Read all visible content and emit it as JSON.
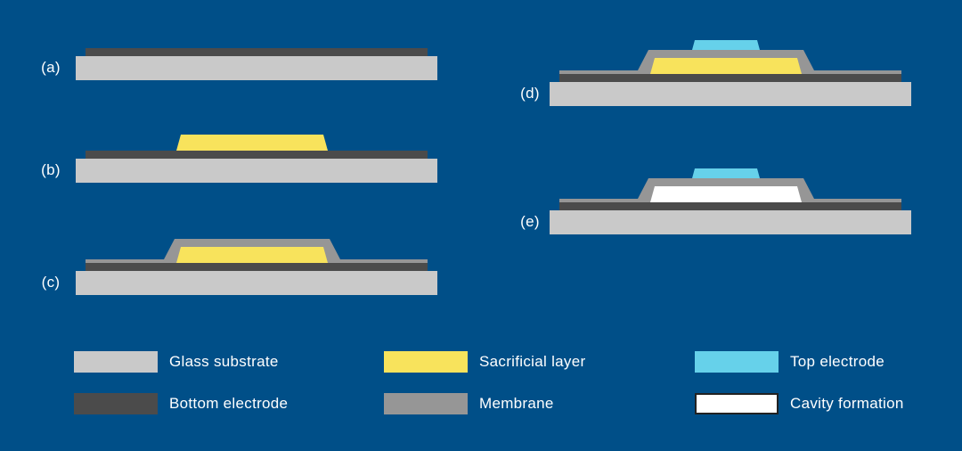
{
  "colors": {
    "background": "#004F88",
    "text": "#FFFFFF"
  },
  "layers": {
    "substrate": {
      "color": "#C9C9C9"
    },
    "bottom_electrode": {
      "color": "#4B4B4B"
    },
    "sacrificial": {
      "color": "#F8E35C"
    },
    "membrane": {
      "color": "#969696"
    },
    "top_electrode": {
      "color": "#66D1EA"
    },
    "cavity": {
      "color": "#FFFFFF",
      "border": "#222222"
    }
  },
  "diagram": {
    "steps": [
      {
        "label": "(a)",
        "layers": [
          "substrate",
          "bottom_electrode"
        ]
      },
      {
        "label": "(b)",
        "layers": [
          "substrate",
          "bottom_electrode",
          "sacrificial"
        ]
      },
      {
        "label": "(c)",
        "layers": [
          "substrate",
          "bottom_electrode",
          "membrane",
          "sacrificial"
        ]
      },
      {
        "label": "(d)",
        "layers": [
          "substrate",
          "bottom_electrode",
          "membrane",
          "sacrificial",
          "top_electrode"
        ]
      },
      {
        "label": "(e)",
        "layers": [
          "substrate",
          "bottom_electrode",
          "membrane",
          "cavity",
          "top_electrode"
        ]
      }
    ]
  },
  "legend": {
    "items": [
      {
        "key": "substrate",
        "label": "Glass substrate"
      },
      {
        "key": "bottom_electrode",
        "label": "Bottom electrode"
      },
      {
        "key": "sacrificial",
        "label": "Sacrificial layer"
      },
      {
        "key": "membrane",
        "label": "Membrane"
      },
      {
        "key": "top_electrode",
        "label": "Top electrode"
      },
      {
        "key": "cavity",
        "label": "Cavity formation"
      }
    ]
  }
}
